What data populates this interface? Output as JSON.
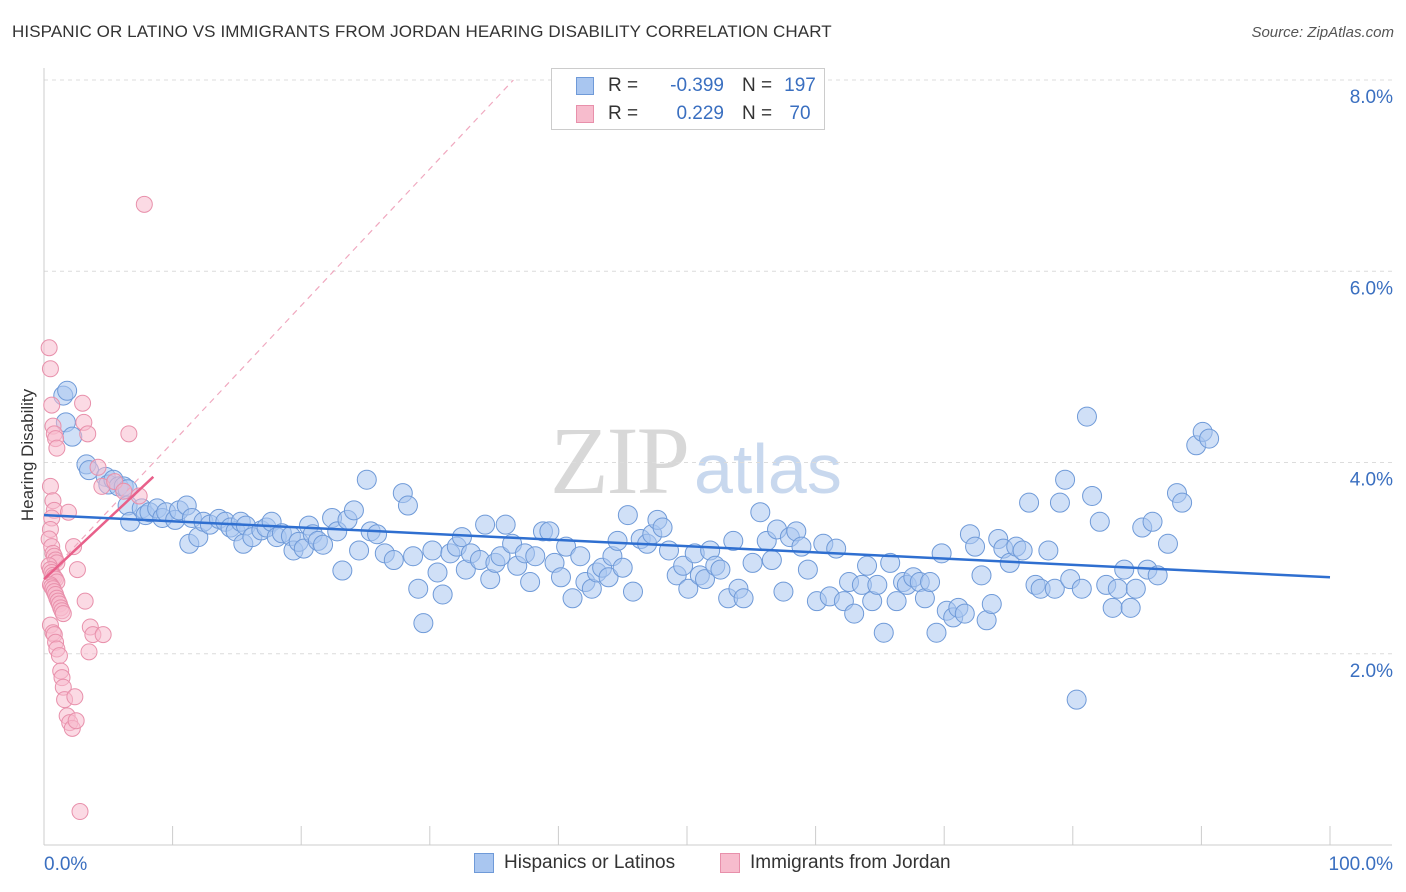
{
  "header": {
    "title": "HISPANIC OR LATINO VS IMMIGRANTS FROM JORDAN HEARING DISABILITY CORRELATION CHART",
    "source": "Source: ZipAtlas.com"
  },
  "watermark": {
    "zip": "ZIP",
    "atlas": "atlas"
  },
  "legend_top": [
    {
      "r_label": "R =",
      "r_value": "-0.399",
      "n_label": "N =",
      "n_value": "197",
      "color": "#a9c6f0",
      "border": "#6f9ad8"
    },
    {
      "r_label": "R =",
      "r_value": "0.229",
      "n_label": "N =",
      "n_value": "70",
      "color": "#f7bccd",
      "border": "#e890ab"
    }
  ],
  "legend_bottom": [
    {
      "label": "Hispanics or Latinos",
      "color": "#a9c6f0",
      "border": "#6f9ad8"
    },
    {
      "label": "Immigrants from Jordan",
      "color": "#f7bccd",
      "border": "#e890ab"
    }
  ],
  "chart_data": {
    "type": "scatter",
    "title": "HISPANIC OR LATINO VS IMMIGRANTS FROM JORDAN HEARING DISABILITY CORRELATION CHART",
    "xlabel": "",
    "ylabel": "Hearing Disability",
    "xlim": [
      0,
      100
    ],
    "ylim": [
      0,
      8
    ],
    "x_tick_labels": [
      "0.0%",
      "100.0%"
    ],
    "y_ticks": [
      2,
      4,
      6,
      8
    ],
    "y_tick_labels": [
      "2.0%",
      "4.0%",
      "6.0%",
      "8.0%"
    ],
    "grid": true,
    "legend_placement": "top-center",
    "colors": {
      "blue_fill": "#a9c6f0",
      "blue_stroke": "#6f9ad8",
      "blue_line": "#2f6fd0",
      "pink_fill": "#f7bccd",
      "pink_stroke": "#e890ab",
      "pink_line": "#e8608a",
      "tick_label": "#3a6fc0"
    },
    "series": [
      {
        "name": "Hispanics or Latinos",
        "r": -0.399,
        "n": 197,
        "trend": {
          "x": [
            0,
            100
          ],
          "y": [
            3.45,
            2.8
          ]
        },
        "points": [
          [
            1.5,
            4.7
          ],
          [
            1.8,
            4.75
          ],
          [
            1.7,
            4.42
          ],
          [
            2.2,
            4.27
          ],
          [
            3.3,
            3.98
          ],
          [
            3.5,
            3.92
          ],
          [
            4.8,
            3.85
          ],
          [
            5.0,
            3.77
          ],
          [
            5.4,
            3.82
          ],
          [
            5.8,
            3.75
          ],
          [
            6.2,
            3.75
          ],
          [
            6.5,
            3.72
          ],
          [
            6.5,
            3.55
          ],
          [
            6.7,
            3.38
          ],
          [
            7.6,
            3.52
          ],
          [
            7.9,
            3.45
          ],
          [
            8.2,
            3.48
          ],
          [
            8.8,
            3.52
          ],
          [
            9.2,
            3.42
          ],
          [
            9.5,
            3.48
          ],
          [
            10.2,
            3.4
          ],
          [
            10.5,
            3.5
          ],
          [
            11.1,
            3.55
          ],
          [
            11.5,
            3.42
          ],
          [
            11.3,
            3.15
          ],
          [
            12.0,
            3.22
          ],
          [
            12.4,
            3.38
          ],
          [
            12.9,
            3.35
          ],
          [
            13.6,
            3.41
          ],
          [
            14.1,
            3.38
          ],
          [
            14.5,
            3.32
          ],
          [
            14.9,
            3.28
          ],
          [
            15.3,
            3.38
          ],
          [
            15.7,
            3.34
          ],
          [
            15.5,
            3.15
          ],
          [
            16.2,
            3.22
          ],
          [
            16.9,
            3.29
          ],
          [
            17.3,
            3.32
          ],
          [
            17.7,
            3.38
          ],
          [
            18.1,
            3.22
          ],
          [
            18.5,
            3.26
          ],
          [
            19.2,
            3.23
          ],
          [
            19.4,
            3.08
          ],
          [
            19.8,
            3.17
          ],
          [
            20.2,
            3.1
          ],
          [
            20.6,
            3.34
          ],
          [
            20.9,
            3.25
          ],
          [
            21.3,
            3.18
          ],
          [
            21.7,
            3.14
          ],
          [
            22.4,
            3.42
          ],
          [
            22.8,
            3.28
          ],
          [
            23.2,
            2.87
          ],
          [
            23.6,
            3.4
          ],
          [
            24.1,
            3.5
          ],
          [
            24.5,
            3.08
          ],
          [
            25.1,
            3.82
          ],
          [
            25.4,
            3.28
          ],
          [
            25.9,
            3.25
          ],
          [
            26.5,
            3.05
          ],
          [
            27.2,
            2.98
          ],
          [
            27.9,
            3.68
          ],
          [
            28.3,
            3.55
          ],
          [
            28.7,
            3.02
          ],
          [
            29.1,
            2.68
          ],
          [
            29.5,
            2.32
          ],
          [
            30.2,
            3.08
          ],
          [
            30.6,
            2.85
          ],
          [
            31.0,
            2.62
          ],
          [
            31.6,
            3.05
          ],
          [
            32.1,
            3.12
          ],
          [
            32.5,
            3.22
          ],
          [
            32.8,
            2.88
          ],
          [
            33.2,
            3.05
          ],
          [
            33.9,
            2.98
          ],
          [
            34.3,
            3.35
          ],
          [
            34.7,
            2.78
          ],
          [
            35.1,
            2.95
          ],
          [
            35.5,
            3.02
          ],
          [
            35.9,
            3.35
          ],
          [
            36.4,
            3.15
          ],
          [
            36.8,
            2.92
          ],
          [
            37.4,
            3.05
          ],
          [
            37.8,
            2.75
          ],
          [
            38.2,
            3.02
          ],
          [
            38.8,
            3.28
          ],
          [
            39.3,
            3.28
          ],
          [
            39.7,
            2.95
          ],
          [
            40.2,
            2.8
          ],
          [
            40.6,
            3.12
          ],
          [
            41.1,
            2.58
          ],
          [
            41.7,
            3.02
          ],
          [
            42.1,
            2.75
          ],
          [
            42.6,
            2.68
          ],
          [
            43.0,
            2.85
          ],
          [
            43.4,
            2.9
          ],
          [
            43.9,
            2.8
          ],
          [
            44.2,
            3.02
          ],
          [
            44.6,
            3.18
          ],
          [
            45.0,
            2.9
          ],
          [
            45.4,
            3.45
          ],
          [
            45.8,
            2.65
          ],
          [
            46.4,
            3.2
          ],
          [
            46.9,
            3.15
          ],
          [
            47.3,
            3.25
          ],
          [
            47.7,
            3.4
          ],
          [
            48.1,
            3.32
          ],
          [
            48.6,
            3.08
          ],
          [
            49.2,
            2.82
          ],
          [
            49.7,
            2.92
          ],
          [
            50.1,
            2.68
          ],
          [
            50.6,
            3.05
          ],
          [
            51.0,
            2.82
          ],
          [
            51.4,
            2.78
          ],
          [
            51.8,
            3.08
          ],
          [
            52.2,
            2.92
          ],
          [
            52.6,
            2.88
          ],
          [
            53.2,
            2.58
          ],
          [
            53.6,
            3.18
          ],
          [
            54.0,
            2.68
          ],
          [
            54.4,
            2.58
          ],
          [
            55.1,
            2.95
          ],
          [
            55.7,
            3.48
          ],
          [
            56.2,
            3.18
          ],
          [
            56.6,
            2.98
          ],
          [
            57.0,
            3.3
          ],
          [
            57.5,
            2.65
          ],
          [
            58.0,
            3.22
          ],
          [
            58.5,
            3.28
          ],
          [
            58.9,
            3.12
          ],
          [
            59.4,
            2.88
          ],
          [
            60.1,
            2.55
          ],
          [
            60.6,
            3.15
          ],
          [
            61.1,
            2.6
          ],
          [
            61.6,
            3.1
          ],
          [
            62.2,
            2.55
          ],
          [
            62.6,
            2.75
          ],
          [
            63.0,
            2.42
          ],
          [
            63.6,
            2.72
          ],
          [
            64.0,
            2.92
          ],
          [
            64.4,
            2.55
          ],
          [
            64.8,
            2.72
          ],
          [
            65.3,
            2.22
          ],
          [
            65.8,
            2.95
          ],
          [
            66.3,
            2.55
          ],
          [
            66.8,
            2.75
          ],
          [
            67.1,
            2.72
          ],
          [
            67.6,
            2.8
          ],
          [
            68.1,
            2.75
          ],
          [
            68.5,
            2.58
          ],
          [
            68.9,
            2.75
          ],
          [
            69.4,
            2.22
          ],
          [
            69.8,
            3.05
          ],
          [
            70.2,
            2.45
          ],
          [
            70.7,
            2.38
          ],
          [
            71.1,
            2.48
          ],
          [
            71.6,
            2.42
          ],
          [
            72.0,
            3.25
          ],
          [
            72.4,
            3.12
          ],
          [
            72.9,
            2.82
          ],
          [
            73.3,
            2.35
          ],
          [
            73.7,
            2.52
          ],
          [
            74.2,
            3.2
          ],
          [
            74.6,
            3.1
          ],
          [
            75.1,
            2.95
          ],
          [
            75.6,
            3.12
          ],
          [
            76.1,
            3.08
          ],
          [
            76.6,
            3.58
          ],
          [
            77.1,
            2.72
          ],
          [
            77.5,
            2.68
          ],
          [
            78.1,
            3.08
          ],
          [
            78.6,
            2.68
          ],
          [
            79.0,
            3.58
          ],
          [
            79.4,
            3.82
          ],
          [
            79.8,
            2.78
          ],
          [
            80.3,
            1.52
          ],
          [
            80.7,
            2.68
          ],
          [
            81.1,
            4.48
          ],
          [
            81.5,
            3.65
          ],
          [
            82.1,
            3.38
          ],
          [
            82.6,
            2.72
          ],
          [
            83.1,
            2.48
          ],
          [
            83.5,
            2.68
          ],
          [
            84.0,
            2.88
          ],
          [
            84.5,
            2.48
          ],
          [
            84.9,
            2.68
          ],
          [
            85.4,
            3.32
          ],
          [
            85.8,
            2.88
          ],
          [
            86.2,
            3.38
          ],
          [
            86.6,
            2.82
          ],
          [
            87.4,
            3.15
          ],
          [
            88.1,
            3.68
          ],
          [
            88.5,
            3.58
          ],
          [
            89.6,
            4.18
          ],
          [
            90.1,
            4.32
          ],
          [
            90.6,
            4.25
          ]
        ]
      },
      {
        "name": "Immigrants from Jordan",
        "r": 0.229,
        "n": 70,
        "trend": {
          "x": [
            0,
            8.5
          ],
          "y": [
            2.78,
            3.85
          ]
        },
        "trend_extended": {
          "x": [
            0,
            36.5
          ],
          "y": [
            2.78,
            8.0
          ]
        },
        "points": [
          [
            0.4,
            5.2
          ],
          [
            0.5,
            4.98
          ],
          [
            0.6,
            4.6
          ],
          [
            0.7,
            4.38
          ],
          [
            0.8,
            4.3
          ],
          [
            0.9,
            4.25
          ],
          [
            1.0,
            4.15
          ],
          [
            0.5,
            3.75
          ],
          [
            0.7,
            3.6
          ],
          [
            0.8,
            3.5
          ],
          [
            0.6,
            3.42
          ],
          [
            0.5,
            3.3
          ],
          [
            0.4,
            3.2
          ],
          [
            0.6,
            3.12
          ],
          [
            0.7,
            3.05
          ],
          [
            0.8,
            3.02
          ],
          [
            0.9,
            2.98
          ],
          [
            1.0,
            2.95
          ],
          [
            0.4,
            2.92
          ],
          [
            0.5,
            2.88
          ],
          [
            0.6,
            2.85
          ],
          [
            0.7,
            2.82
          ],
          [
            0.8,
            2.8
          ],
          [
            0.9,
            2.78
          ],
          [
            1.0,
            2.75
          ],
          [
            0.5,
            2.72
          ],
          [
            0.6,
            2.7
          ],
          [
            0.7,
            2.68
          ],
          [
            0.8,
            2.65
          ],
          [
            0.9,
            2.62
          ],
          [
            1.0,
            2.58
          ],
          [
            1.1,
            2.55
          ],
          [
            1.2,
            2.52
          ],
          [
            1.3,
            2.48
          ],
          [
            1.4,
            2.45
          ],
          [
            1.5,
            2.42
          ],
          [
            0.5,
            2.3
          ],
          [
            0.7,
            2.22
          ],
          [
            0.8,
            2.2
          ],
          [
            0.9,
            2.12
          ],
          [
            1.0,
            2.05
          ],
          [
            1.2,
            1.98
          ],
          [
            1.3,
            1.82
          ],
          [
            1.4,
            1.75
          ],
          [
            1.5,
            1.65
          ],
          [
            1.6,
            1.52
          ],
          [
            1.8,
            1.35
          ],
          [
            2.0,
            1.28
          ],
          [
            2.2,
            1.22
          ],
          [
            2.5,
            1.3
          ],
          [
            2.8,
            0.35
          ],
          [
            3.0,
            4.62
          ],
          [
            3.1,
            4.42
          ],
          [
            3.4,
            4.3
          ],
          [
            3.2,
            2.55
          ],
          [
            3.6,
            2.28
          ],
          [
            3.8,
            2.2
          ],
          [
            3.5,
            2.02
          ],
          [
            4.2,
            3.95
          ],
          [
            4.5,
            3.75
          ],
          [
            4.6,
            2.2
          ],
          [
            5.5,
            3.8
          ],
          [
            6.2,
            3.7
          ],
          [
            6.6,
            4.3
          ],
          [
            7.4,
            3.65
          ],
          [
            7.8,
            6.7
          ],
          [
            2.3,
            3.12
          ],
          [
            2.6,
            2.88
          ],
          [
            1.9,
            3.48
          ],
          [
            2.4,
            1.55
          ]
        ]
      }
    ]
  }
}
